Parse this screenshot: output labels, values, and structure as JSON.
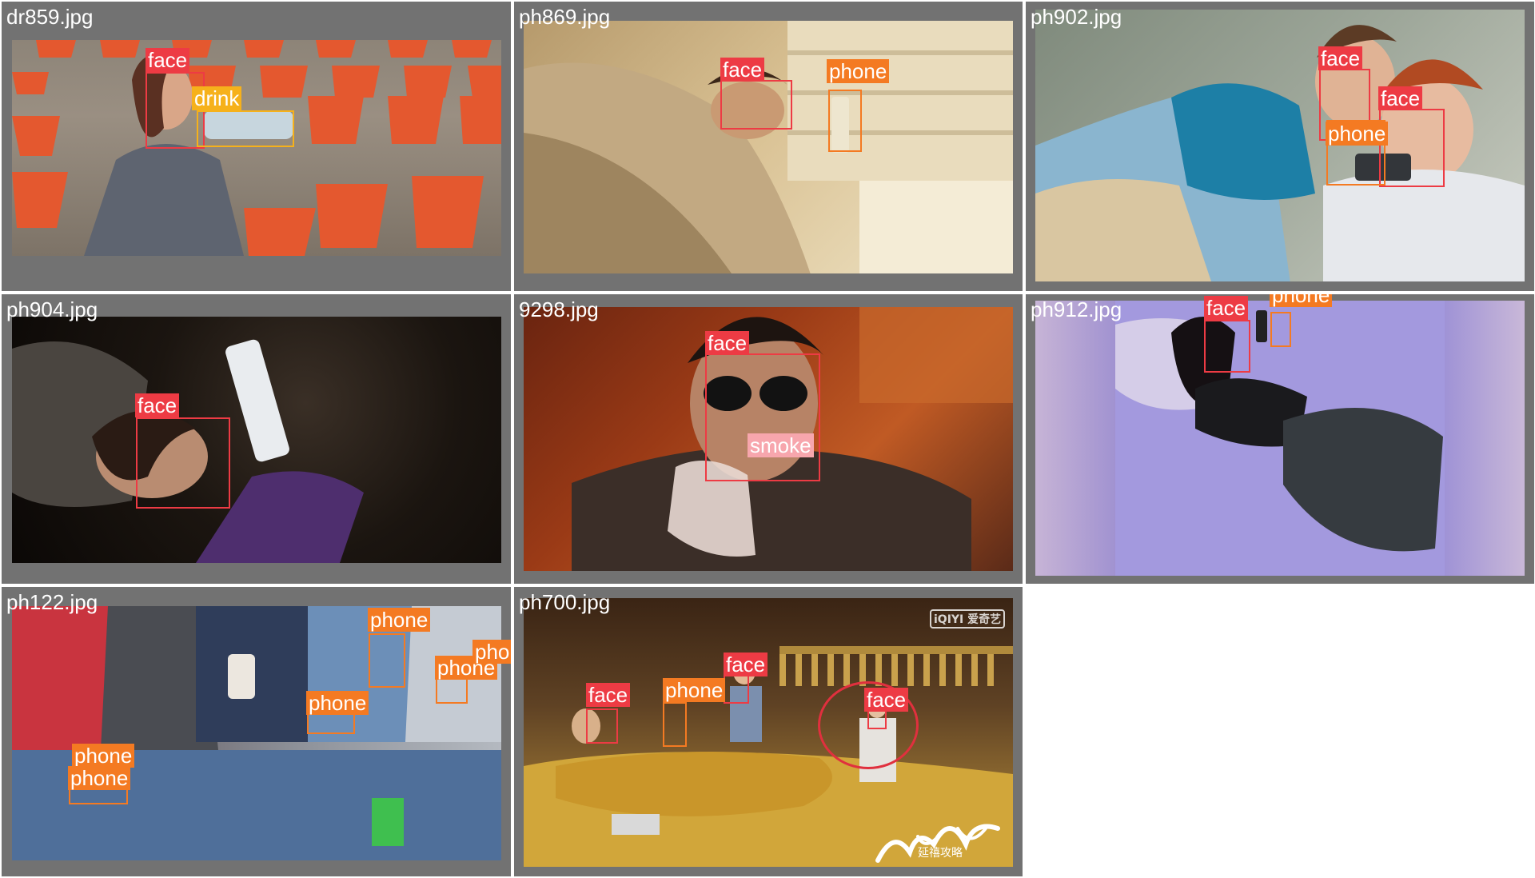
{
  "palette": {
    "face": "#ed3b44",
    "phone": "#f47a22",
    "drink": "#f6b11b",
    "smoke": "#f7a6ad",
    "tile_bg": "#727272"
  },
  "tiles": [
    {
      "filename": "dr859.jpg",
      "scene": "stadium",
      "detections": [
        {
          "label": "face"
        },
        {
          "label": "drink"
        }
      ]
    },
    {
      "filename": "ph869.jpg",
      "scene": "bed-warm",
      "detections": [
        {
          "label": "face"
        },
        {
          "label": "phone"
        }
      ]
    },
    {
      "filename": "ph902.jpg",
      "scene": "sofa",
      "detections": [
        {
          "label": "face"
        },
        {
          "label": "face"
        },
        {
          "label": "phone"
        }
      ]
    },
    {
      "filename": "ph904.jpg",
      "scene": "dark-tablet",
      "detections": [
        {
          "label": "face"
        }
      ]
    },
    {
      "filename": "9298.jpg",
      "scene": "movie-smoke",
      "detections": [
        {
          "label": "face"
        },
        {
          "label": "smoke"
        }
      ]
    },
    {
      "filename": "ph912.jpg",
      "scene": "purple-bed",
      "detections": [
        {
          "label": "face"
        },
        {
          "label": "phone"
        }
      ]
    },
    {
      "filename": "ph122.jpg",
      "scene": "crowd",
      "detections": [
        {
          "label": "phone"
        },
        {
          "label": "phone"
        },
        {
          "label": "phone"
        },
        {
          "label": "phone"
        },
        {
          "label": "phone"
        },
        {
          "label": "phone"
        }
      ]
    },
    {
      "filename": "ph700.jpg",
      "scene": "palace",
      "detections": [
        {
          "label": "face"
        },
        {
          "label": "face"
        },
        {
          "label": "phone"
        },
        {
          "label": "face"
        }
      ]
    }
  ],
  "palace_watermark": "iQIYI 爱奇艺",
  "palace_signature": "延禧攻略"
}
